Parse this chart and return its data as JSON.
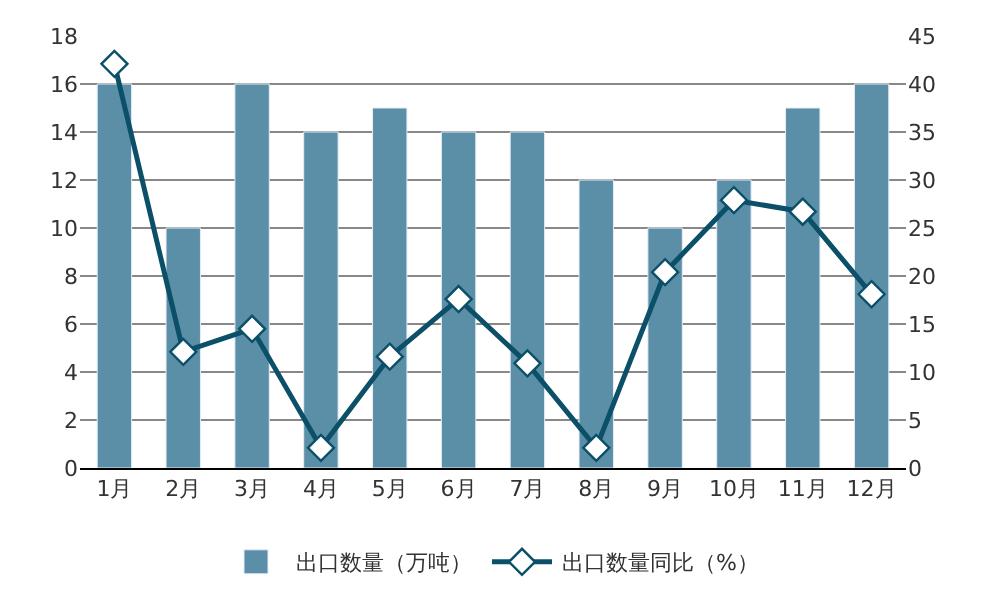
{
  "chart_data": {
    "type": "bar",
    "categories": [
      "1月",
      "2月",
      "3月",
      "4月",
      "5月",
      "6月",
      "7月",
      "8月",
      "9月",
      "10月",
      "11月",
      "12月"
    ],
    "series": [
      {
        "name": "出口数量（万吨）",
        "color": "#5b8fa8",
        "values": [
          16,
          10,
          16,
          14,
          15,
          14,
          14,
          12,
          10,
          12,
          15,
          16
        ]
      },
      {
        "name": "出口数量同比（%）",
        "type": "line",
        "axis": "y2",
        "color": "#0b5068",
        "marker": "diamond",
        "values": [
          42.1,
          12.1,
          14.5,
          2.1,
          11.6,
          17.6,
          10.9,
          2.1,
          20.4,
          27.9,
          26.7,
          18.1
        ]
      }
    ],
    "ylim": [
      0,
      18
    ],
    "yticks": [
      0,
      2,
      4,
      6,
      8,
      10,
      12,
      14,
      16,
      18
    ],
    "y2lim": [
      0,
      45
    ],
    "y2ticks": [
      0,
      5,
      10,
      15,
      20,
      25,
      30,
      35,
      40,
      45
    ],
    "grid": "y",
    "legend": "bottom"
  }
}
